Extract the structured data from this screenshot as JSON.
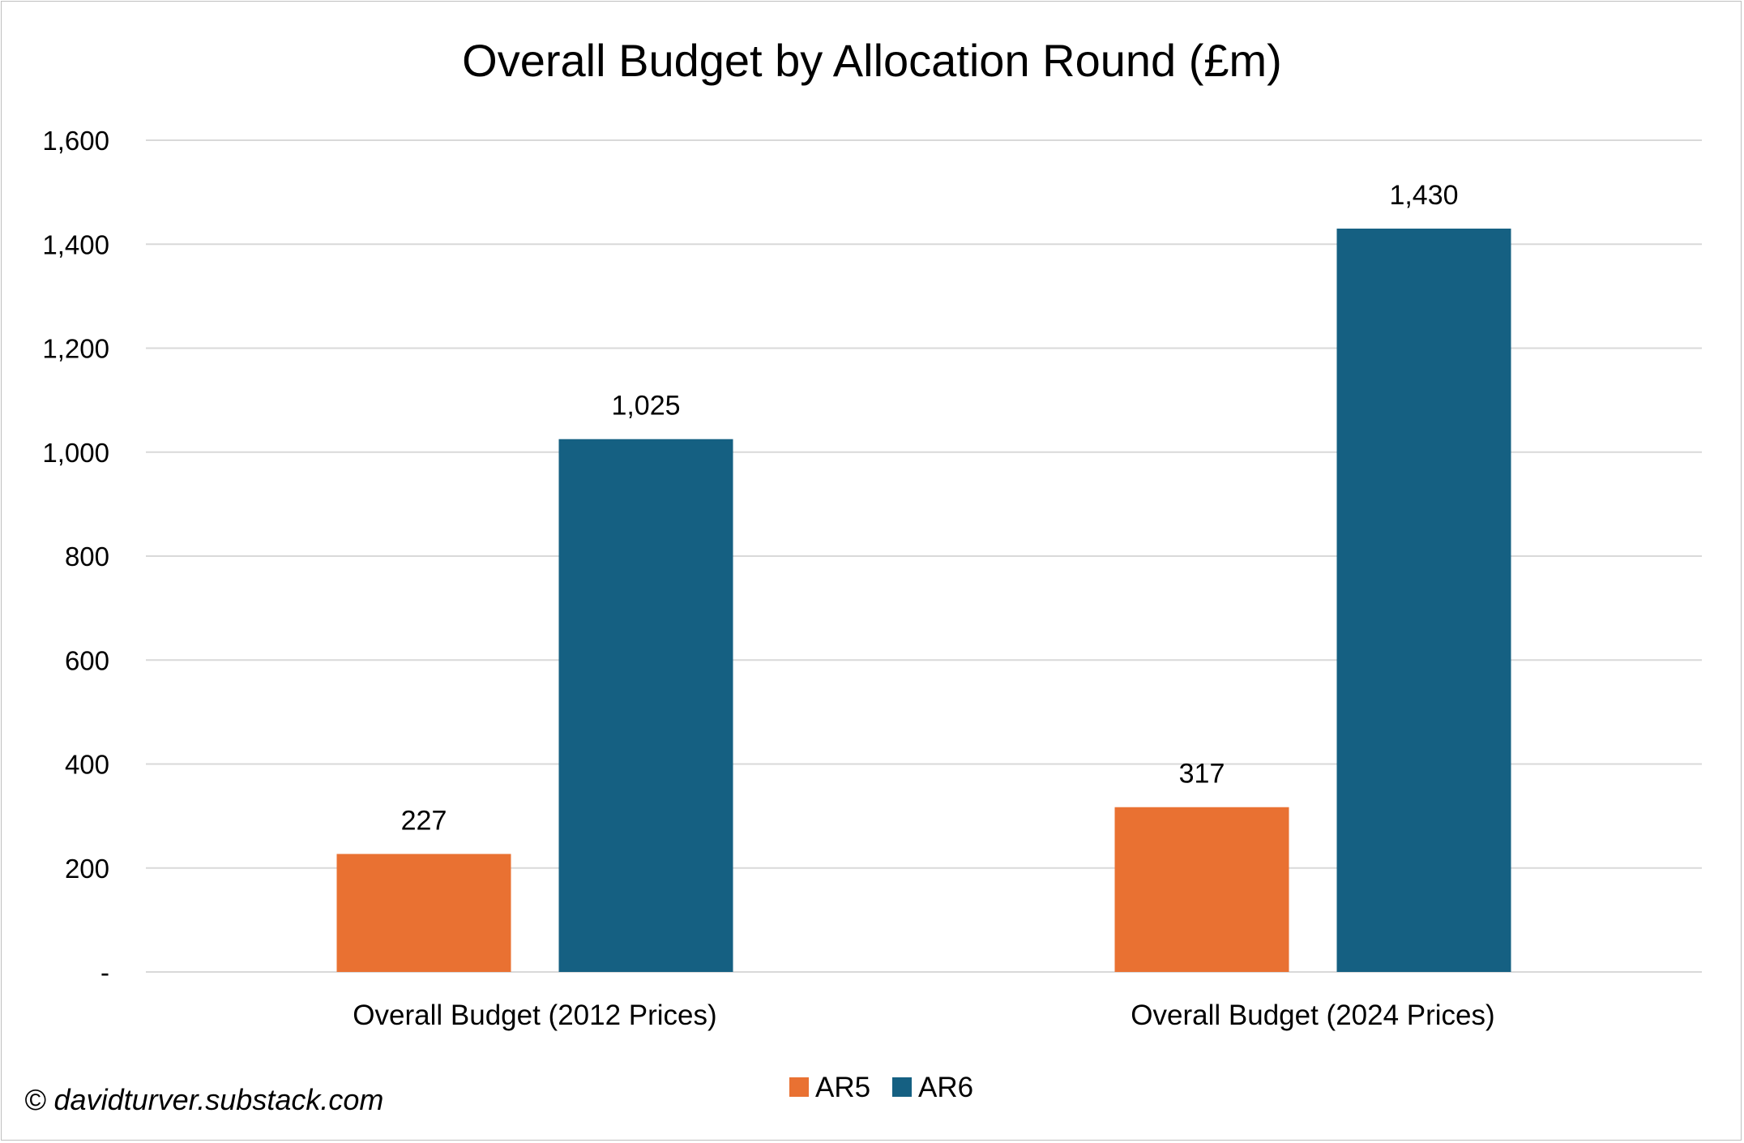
{
  "chart_data": {
    "type": "bar",
    "title": "Overall Budget by Allocation Round (£m)",
    "categories": [
      "Overall Budget (2012 Prices)",
      "Overall Budget (2024 Prices)"
    ],
    "series": [
      {
        "name": "AR5",
        "values": [
          227,
          317
        ],
        "color": "#E97132"
      },
      {
        "name": "AR6",
        "values": [
          1025,
          1430
        ],
        "color": "#156082"
      }
    ],
    "data_labels": [
      [
        "227",
        "317"
      ],
      [
        "1,025",
        "1,430"
      ]
    ],
    "ylim": [
      0,
      1600
    ],
    "y_ticks": [
      0,
      200,
      400,
      600,
      800,
      1000,
      1200,
      1400,
      1600
    ],
    "y_tick_labels": [
      "-",
      "200",
      "400",
      "600",
      "800",
      "1,000",
      "1,200",
      "1,400",
      "1,600"
    ],
    "xlabel": "",
    "ylabel": "",
    "grid": true,
    "gridline_color": "#d9d9d9",
    "legend_position": "bottom",
    "credit": "© davidturver.substack.com"
  }
}
